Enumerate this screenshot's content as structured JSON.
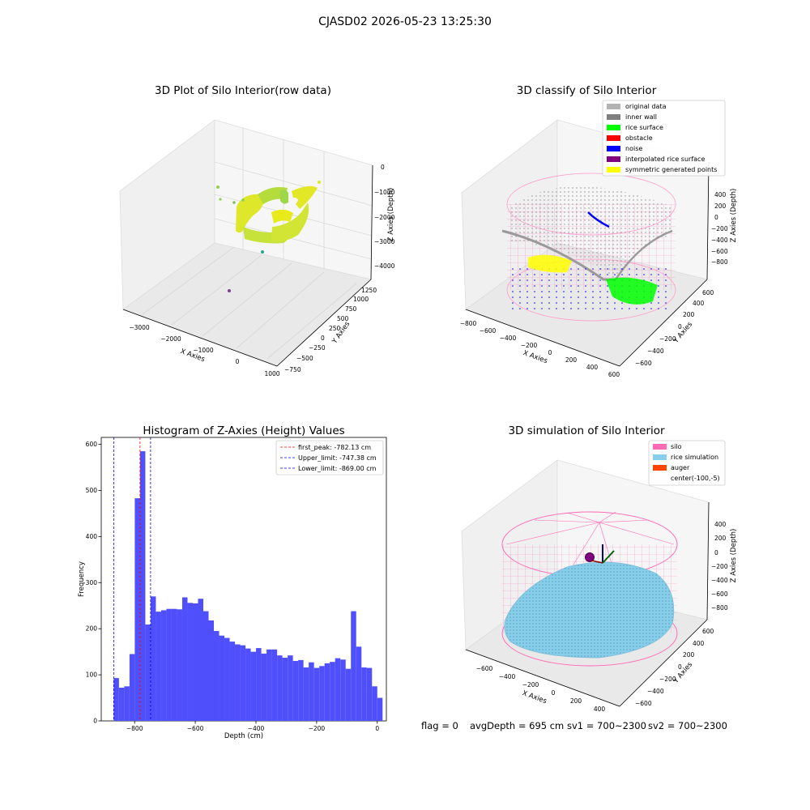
{
  "figure_title": "CJASD02 2026-05-23 13:25:30",
  "status_line": {
    "flag": "flag = 0",
    "avg_depth": "avgDepth = 695 cm",
    "sv1": "sv1 = 700~2300",
    "sv2": "sv2 = 700~2300"
  },
  "colors": {
    "histogram_bar": "#4f4ffb",
    "first_peak_line": "#ff0000",
    "limit_lines": "#0000ff",
    "raw_points_yellow": "#e5e81a",
    "raw_points_green": "#8fd14f",
    "original_data": "#b3b3b3",
    "inner_wall": "#7f7f7f",
    "rice_surface": "#00ff00",
    "obstacle": "#ff0000",
    "noise": "#0000ff",
    "interpolated_rice_surface": "#800080",
    "symmetric_generated_points": "#ffff00",
    "silo": "#ff69b4",
    "rice_simulation": "#87ceeb",
    "auger": "#ff4500"
  },
  "chart_data": [
    {
      "type": "scatter",
      "title": "3D Plot of Silo Interior(row data)",
      "xlabel": "X Axies",
      "ylabel": "Y Axies",
      "zlabel": "Z Axies (Depth)",
      "x_ticks": [
        "−3000",
        "−2000",
        "−1000",
        "0",
        "1000"
      ],
      "y_ticks": [
        "−750",
        "−500",
        "−250",
        "0",
        "250",
        "500",
        "750",
        "1000",
        "1250"
      ],
      "z_ticks": [
        "−4000",
        "−3000",
        "−2000",
        "−1000",
        "0"
      ]
    },
    {
      "type": "scatter",
      "title": "3D classify of Silo Interior",
      "xlabel": "X Axies",
      "ylabel": "Y Axies",
      "zlabel": "Z Axies (Depth)",
      "x_ticks": [
        "−800",
        "−600",
        "−400",
        "−200",
        "0",
        "200",
        "400",
        "600"
      ],
      "y_ticks": [
        "−600",
        "−400",
        "−200",
        "0",
        "200",
        "400",
        "600"
      ],
      "z_ticks": [
        "−800",
        "−600",
        "−400",
        "−200",
        "0",
        "200",
        "400"
      ],
      "legend": [
        "original data",
        "inner wall",
        "rice surface",
        "obstacle",
        "noise",
        "interpolated rice surface",
        "symmetric generated points"
      ],
      "legend_position": "top-right"
    },
    {
      "type": "bar",
      "title": "Histogram of Z-Axies (Height) Values",
      "xlabel": "Depth (cm)",
      "ylabel": "Frequency",
      "xlim": [
        -910,
        30
      ],
      "ylim": [
        0,
        615
      ],
      "x_ticks": [
        -800,
        -600,
        -400,
        -200,
        0
      ],
      "x_tick_labels": [
        "−800",
        "−600",
        "−400",
        "−200",
        "0"
      ],
      "y_ticks": [
        0,
        100,
        200,
        300,
        400,
        500,
        600
      ],
      "bin_start": -869,
      "bin_width": 17.38,
      "values": [
        93,
        72,
        75,
        145,
        483,
        585,
        209,
        270,
        237,
        240,
        243,
        243,
        242,
        268,
        256,
        255,
        265,
        238,
        218,
        195,
        185,
        180,
        172,
        166,
        164,
        157,
        150,
        158,
        146,
        155,
        155,
        142,
        137,
        142,
        130,
        132,
        116,
        127,
        115,
        119,
        125,
        128,
        136,
        133,
        113,
        238,
        161,
        116,
        115,
        75,
        50
      ],
      "vlines": [
        {
          "x": -782.13,
          "label": "first_peak: -782.13 cm",
          "style": "dashed",
          "color": "#ff0000"
        },
        {
          "x": -747.38,
          "label": "Upper_limit: -747.38 cm",
          "style": "dashed",
          "color": "#0000ff"
        },
        {
          "x": -869.0,
          "label": "Lower_limit: -869.00 cm",
          "style": "dashed",
          "color": "#0000ff"
        }
      ],
      "legend_position": "top-right"
    },
    {
      "type": "scatter",
      "title": "3D simulation of Silo Interior",
      "xlabel": "X Axies",
      "ylabel": "Y Axies",
      "zlabel": "Z Axies (Depth)",
      "x_ticks": [
        "−600",
        "−400",
        "−200",
        "0",
        "200",
        "400"
      ],
      "y_ticks": [
        "−600",
        "−400",
        "−200",
        "0",
        "200",
        "400",
        "600"
      ],
      "z_ticks": [
        "−800",
        "−600",
        "−400",
        "−200",
        "0",
        "200",
        "400"
      ],
      "legend": [
        "silo",
        "rice simulation",
        "auger",
        "center(-100,-5)"
      ],
      "legend_position": "top-right"
    }
  ]
}
